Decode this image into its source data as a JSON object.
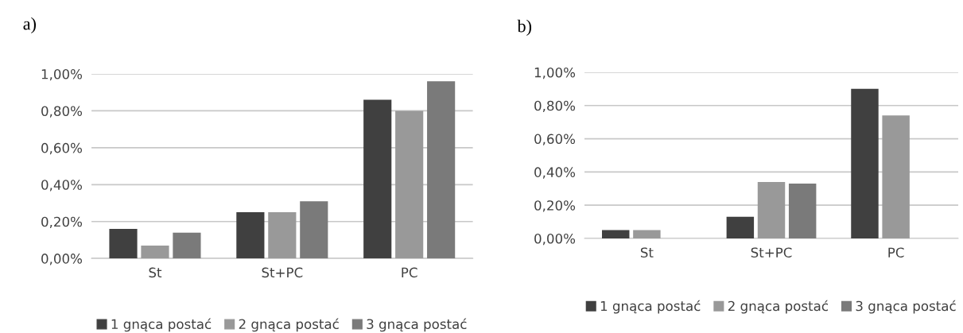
{
  "chart_data": [
    {
      "type": "bar",
      "title": "a)",
      "categories": [
        "St",
        "St+PC",
        "PC"
      ],
      "series": [
        {
          "name": "1 gnąca postać",
          "color": "#404040",
          "values": [
            0.16,
            0.25,
            0.86
          ]
        },
        {
          "name": "2 gnąca postać",
          "color": "#999999",
          "values": [
            0.07,
            0.25,
            0.8
          ]
        },
        {
          "name": "3 gnąca postać",
          "color": "#7a7a7a",
          "values": [
            0.14,
            0.31,
            0.96
          ]
        }
      ],
      "ylim": [
        0,
        1
      ],
      "yticks": [
        {
          "value": 0,
          "label": "0,00%"
        },
        {
          "value": 0.2,
          "label": "0,20%"
        },
        {
          "value": 0.4,
          "label": "0,40%"
        },
        {
          "value": 0.6,
          "label": "0,60%"
        },
        {
          "value": 0.8,
          "label": "0,80%"
        },
        {
          "value": 1,
          "label": "1,00%"
        }
      ],
      "grid": "y",
      "legend": "bottom"
    },
    {
      "type": "bar",
      "title": "b)",
      "categories": [
        "St",
        "St+PC",
        "PC"
      ],
      "series": [
        {
          "name": "1 gnąca postać",
          "color": "#404040",
          "values": [
            0.05,
            0.13,
            0.9
          ]
        },
        {
          "name": "2 gnąca postać",
          "color": "#999999",
          "values": [
            0.05,
            0.34,
            0.74
          ]
        },
        {
          "name": "3 gnąca postać",
          "color": "#7a7a7a",
          "values": [
            null,
            0.33,
            null
          ]
        }
      ],
      "ylim": [
        0,
        1
      ],
      "yticks": [
        {
          "value": 0,
          "label": "0,00%"
        },
        {
          "value": 0.2,
          "label": "0,20%"
        },
        {
          "value": 0.4,
          "label": "0,40%"
        },
        {
          "value": 0.6,
          "label": "0,60%"
        },
        {
          "value": 0.8,
          "label": "0,80%"
        },
        {
          "value": 1,
          "label": "1,00%"
        }
      ],
      "grid": "y",
      "legend": "bottom"
    }
  ]
}
